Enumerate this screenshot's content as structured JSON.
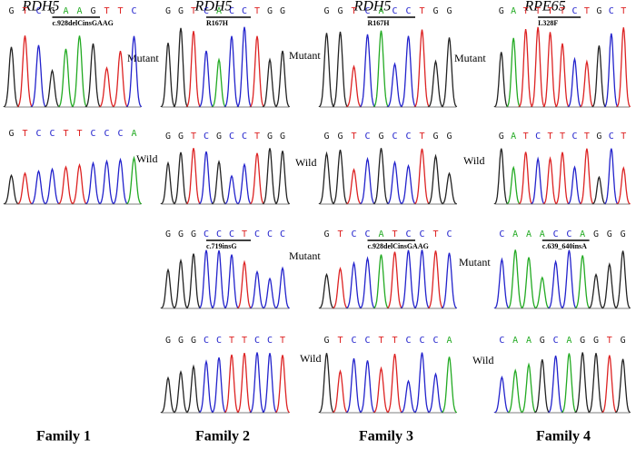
{
  "families": [
    {
      "gene": "RDH5",
      "label": "Family 1",
      "panels": [
        {
          "sequence": "GTCGAAGTTC",
          "annotation": "c.928delCinsGAAG",
          "label": "Mutant"
        },
        {
          "sequence": "GTCCTTCCCA",
          "label": "Wild"
        }
      ]
    },
    {
      "gene": "RDH5",
      "label": "Family 2",
      "panels": [
        {
          "sequence": "GGTCACCTGG",
          "annotation": "R167H",
          "label": "Mutant"
        },
        {
          "sequence": "GGTCGCCTGG",
          "label": "Wild"
        },
        {
          "sequence": "GGGCCCTCCC",
          "annotation": "c.719insG",
          "label": "Mutant"
        },
        {
          "sequence": "GGGCCTTCCT",
          "label": "Wild"
        }
      ]
    },
    {
      "gene": "RDH5",
      "label": "Family 3",
      "panels": [
        {
          "sequence": "GGTCACCTGG",
          "annotation": "R167H",
          "label": "Mutant"
        },
        {
          "sequence": "GGTCGCCTGG",
          "label": "Wild"
        },
        {
          "sequence": "GTCCATCCTC",
          "annotation": "c.928delCinsGAAG",
          "label": "Mutant"
        },
        {
          "sequence": "GTCCTTCCCA",
          "label": "Wild"
        }
      ]
    },
    {
      "gene": "RPE65",
      "label": "Family 4",
      "panels": [
        {
          "sequence": "GATTTTCTGCT",
          "annotation": "L328F"
        },
        {
          "sequence": "GATCTTCTGCT"
        },
        {
          "sequence": "CAAACCAGGG",
          "annotation": "c.639_640insA"
        },
        {
          "sequence": "CAAGCAGGTG"
        }
      ]
    }
  ]
}
